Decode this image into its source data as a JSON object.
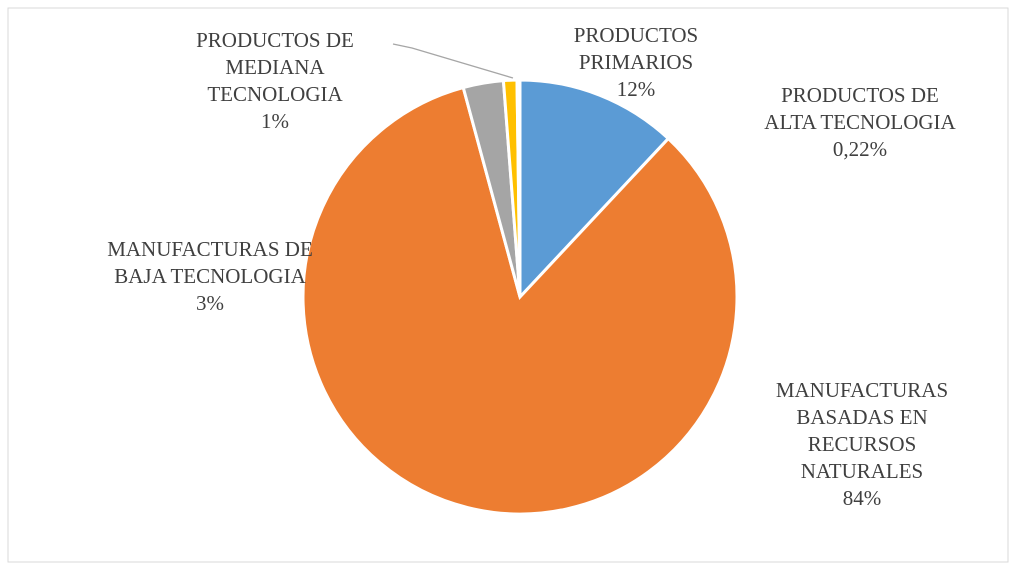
{
  "chart_data": {
    "type": "pie",
    "categories": [
      "PRODUCTOS PRIMARIOS",
      "MANUFACTURAS BASADAS EN RECURSOS NATURALES",
      "MANUFACTURAS DE BAJA TECNOLOGIA",
      "PRODUCTOS DE MEDIANA TECNOLOGIA",
      "PRODUCTOS DE ALTA TECNOLOGIA"
    ],
    "values": [
      12,
      84,
      3,
      1,
      0.22
    ],
    "value_labels": [
      "12%",
      "84%",
      "3%",
      "1%",
      "0,22%"
    ],
    "colors": [
      "#5b9bd5",
      "#ed7d31",
      "#a5a5a5",
      "#ffc000",
      "#4472c4"
    ]
  }
}
